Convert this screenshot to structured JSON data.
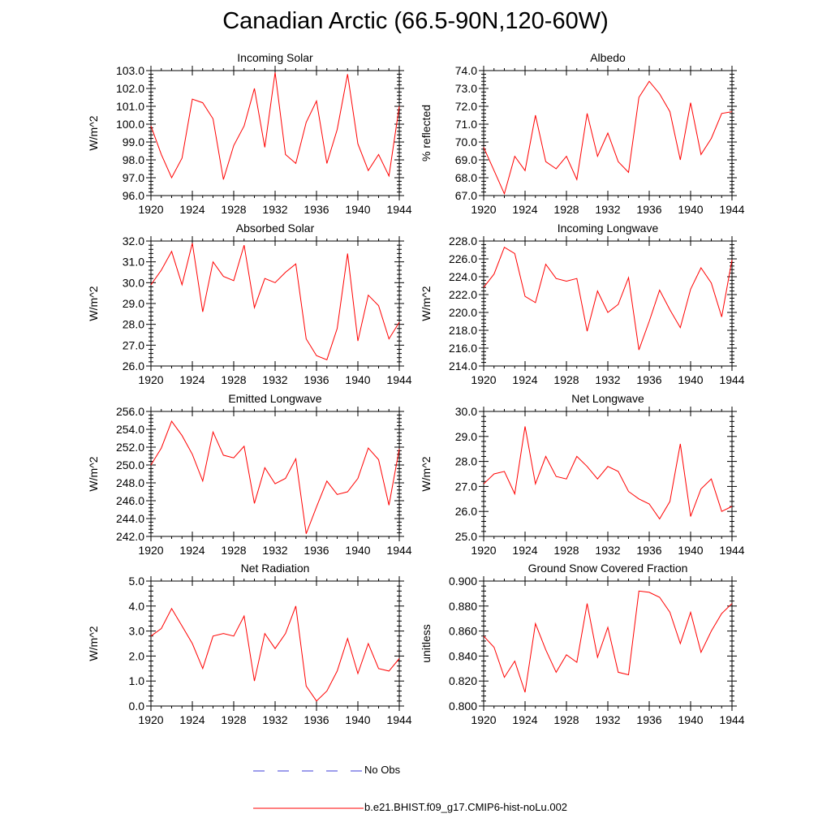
{
  "figure": {
    "title": "Canadian Arctic (66.5-90N,120-60W)"
  },
  "legend": {
    "obs_label": "No Obs",
    "model_label": "b.e21.BHIST.f09_g17.CMIP6-hist-noLu.002",
    "obs_color": "#3b3bd9",
    "model_color": "#ff0000"
  },
  "chart_data": [
    {
      "type": "line",
      "title": "Incoming Solar",
      "ylabel": "W/m^2",
      "xlim": [
        1920,
        1944
      ],
      "ylim": [
        96,
        103
      ],
      "yticks": [
        "96.0",
        "97.0",
        "98.0",
        "99.0",
        "100.0",
        "101.0",
        "102.0",
        "103.0"
      ],
      "xticks": [
        "1920",
        "1924",
        "1928",
        "1932",
        "1936",
        "1940",
        "1944"
      ],
      "x": [
        1920,
        1921,
        1922,
        1923,
        1924,
        1925,
        1926,
        1927,
        1928,
        1929,
        1930,
        1931,
        1932,
        1933,
        1934,
        1935,
        1936,
        1937,
        1938,
        1939,
        1940,
        1941,
        1942,
        1943,
        1944
      ],
      "series": [
        {
          "name": "b.e21.BHIST.f09_g17.CMIP6-hist-noLu.002",
          "values": [
            99.9,
            98.3,
            97.0,
            98.1,
            101.4,
            101.2,
            100.3,
            96.9,
            98.8,
            99.9,
            102.0,
            98.7,
            102.9,
            98.3,
            97.8,
            100.1,
            101.3,
            97.8,
            99.7,
            102.8,
            98.9,
            97.4,
            98.3,
            97.1,
            101.0
          ]
        }
      ]
    },
    {
      "type": "line",
      "title": "Albedo",
      "ylabel": "% reflected",
      "xlim": [
        1920,
        1944
      ],
      "ylim": [
        67,
        74
      ],
      "yticks": [
        "67.0",
        "68.0",
        "69.0",
        "70.0",
        "71.0",
        "72.0",
        "73.0",
        "74.0"
      ],
      "xticks": [
        "1920",
        "1924",
        "1928",
        "1932",
        "1936",
        "1940",
        "1944"
      ],
      "x": [
        1920,
        1921,
        1922,
        1923,
        1924,
        1925,
        1926,
        1927,
        1928,
        1929,
        1930,
        1931,
        1932,
        1933,
        1934,
        1935,
        1936,
        1937,
        1938,
        1939,
        1940,
        1941,
        1942,
        1943,
        1944
      ],
      "series": [
        {
          "name": "b.e21.BHIST.f09_g17.CMIP6-hist-noLu.002",
          "values": [
            69.7,
            68.4,
            67.1,
            69.2,
            68.4,
            71.5,
            68.9,
            68.5,
            69.2,
            67.9,
            71.6,
            69.2,
            70.5,
            68.9,
            68.3,
            72.5,
            73.4,
            72.7,
            71.7,
            69.0,
            72.2,
            69.3,
            70.2,
            71.6,
            71.7
          ]
        }
      ]
    },
    {
      "type": "line",
      "title": "Absorbed Solar",
      "ylabel": "W/m^2",
      "xlim": [
        1920,
        1944
      ],
      "ylim": [
        26,
        32
      ],
      "yticks": [
        "26.0",
        "27.0",
        "28.0",
        "29.0",
        "30.0",
        "31.0",
        "32.0"
      ],
      "xticks": [
        "1920",
        "1924",
        "1928",
        "1932",
        "1936",
        "1940",
        "1944"
      ],
      "x": [
        1920,
        1921,
        1922,
        1923,
        1924,
        1925,
        1926,
        1927,
        1928,
        1929,
        1930,
        1931,
        1932,
        1933,
        1934,
        1935,
        1936,
        1937,
        1938,
        1939,
        1940,
        1941,
        1942,
        1943,
        1944
      ],
      "series": [
        {
          "name": "b.e21.BHIST.f09_g17.CMIP6-hist-noLu.002",
          "values": [
            29.9,
            30.6,
            31.5,
            29.9,
            31.9,
            28.6,
            31.0,
            30.3,
            30.1,
            31.8,
            28.8,
            30.2,
            30.0,
            30.5,
            30.9,
            27.3,
            26.5,
            26.3,
            27.8,
            31.4,
            27.2,
            29.4,
            28.9,
            27.3,
            28.1
          ]
        }
      ]
    },
    {
      "type": "line",
      "title": "Incoming Longwave",
      "ylabel": "W/m^2",
      "xlim": [
        1920,
        1944
      ],
      "ylim": [
        214,
        228
      ],
      "yticks": [
        "214.0",
        "216.0",
        "218.0",
        "220.0",
        "222.0",
        "224.0",
        "226.0",
        "228.0"
      ],
      "xticks": [
        "1920",
        "1924",
        "1928",
        "1932",
        "1936",
        "1940",
        "1944"
      ],
      "x": [
        1920,
        1921,
        1922,
        1923,
        1924,
        1925,
        1926,
        1927,
        1928,
        1929,
        1930,
        1931,
        1932,
        1933,
        1934,
        1935,
        1936,
        1937,
        1938,
        1939,
        1940,
        1941,
        1942,
        1943,
        1944
      ],
      "series": [
        {
          "name": "b.e21.BHIST.f09_g17.CMIP6-hist-noLu.002",
          "values": [
            222.8,
            224.3,
            227.3,
            226.6,
            221.8,
            221.1,
            225.4,
            223.8,
            223.5,
            223.8,
            217.9,
            222.4,
            220.0,
            220.9,
            223.9,
            215.8,
            219.0,
            222.5,
            220.3,
            218.3,
            222.6,
            225.0,
            223.3,
            219.5,
            225.9
          ]
        }
      ]
    },
    {
      "type": "line",
      "title": "Emitted Longwave",
      "ylabel": "W/m^2",
      "xlim": [
        1920,
        1944
      ],
      "ylim": [
        242,
        256
      ],
      "yticks": [
        "242.0",
        "244.0",
        "246.0",
        "248.0",
        "250.0",
        "252.0",
        "254.0",
        "256.0"
      ],
      "xticks": [
        "1920",
        "1924",
        "1928",
        "1932",
        "1936",
        "1940",
        "1944"
      ],
      "x": [
        1920,
        1921,
        1922,
        1923,
        1924,
        1925,
        1926,
        1927,
        1928,
        1929,
        1930,
        1931,
        1932,
        1933,
        1934,
        1935,
        1936,
        1937,
        1938,
        1939,
        1940,
        1941,
        1942,
        1943,
        1944
      ],
      "series": [
        {
          "name": "b.e21.BHIST.f09_g17.CMIP6-hist-noLu.002",
          "values": [
            250.0,
            251.9,
            254.9,
            253.3,
            251.2,
            248.2,
            253.7,
            251.1,
            250.8,
            252.1,
            245.7,
            249.7,
            247.9,
            248.5,
            250.7,
            242.3,
            245.3,
            248.2,
            246.7,
            247.0,
            248.5,
            251.9,
            250.6,
            245.5,
            251.8
          ]
        }
      ]
    },
    {
      "type": "line",
      "title": "Net Longwave",
      "ylabel": "W/m^2",
      "xlim": [
        1920,
        1944
      ],
      "ylim": [
        25,
        30
      ],
      "yticks": [
        "25.0",
        "26.0",
        "27.0",
        "28.0",
        "29.0",
        "30.0"
      ],
      "xticks": [
        "1920",
        "1924",
        "1928",
        "1932",
        "1936",
        "1940",
        "1944"
      ],
      "x": [
        1920,
        1921,
        1922,
        1923,
        1924,
        1925,
        1926,
        1927,
        1928,
        1929,
        1930,
        1931,
        1932,
        1933,
        1934,
        1935,
        1936,
        1937,
        1938,
        1939,
        1940,
        1941,
        1942,
        1943,
        1944
      ],
      "series": [
        {
          "name": "b.e21.BHIST.f09_g17.CMIP6-hist-noLu.002",
          "values": [
            27.1,
            27.5,
            27.6,
            26.7,
            29.4,
            27.1,
            28.2,
            27.4,
            27.3,
            28.2,
            27.8,
            27.3,
            27.8,
            27.6,
            26.8,
            26.5,
            26.3,
            25.7,
            26.4,
            28.7,
            25.8,
            26.9,
            27.3,
            26.0,
            26.2
          ]
        }
      ]
    },
    {
      "type": "line",
      "title": "Net Radiation",
      "ylabel": "W/m^2",
      "xlim": [
        1920,
        1944
      ],
      "ylim": [
        0,
        5
      ],
      "yticks": [
        "0.0",
        "1.0",
        "2.0",
        "3.0",
        "4.0",
        "5.0"
      ],
      "xticks": [
        "1920",
        "1924",
        "1928",
        "1932",
        "1936",
        "1940",
        "1944"
      ],
      "x": [
        1920,
        1921,
        1922,
        1923,
        1924,
        1925,
        1926,
        1927,
        1928,
        1929,
        1930,
        1931,
        1932,
        1933,
        1934,
        1935,
        1936,
        1937,
        1938,
        1939,
        1940,
        1941,
        1942,
        1943,
        1944
      ],
      "series": [
        {
          "name": "b.e21.BHIST.f09_g17.CMIP6-hist-noLu.002",
          "values": [
            2.8,
            3.1,
            3.9,
            3.2,
            2.5,
            1.5,
            2.8,
            2.9,
            2.8,
            3.6,
            1.0,
            2.9,
            2.3,
            2.9,
            4.0,
            0.8,
            0.2,
            0.6,
            1.4,
            2.7,
            1.3,
            2.5,
            1.5,
            1.4,
            1.9
          ]
        }
      ]
    },
    {
      "type": "line",
      "title": "Ground Snow Covered Fraction",
      "ylabel": "unitless",
      "xlim": [
        1920,
        1944
      ],
      "ylim": [
        0.8,
        0.9
      ],
      "yticks": [
        "0.800",
        "0.820",
        "0.840",
        "0.860",
        "0.880",
        "0.900"
      ],
      "xticks": [
        "1920",
        "1924",
        "1928",
        "1932",
        "1936",
        "1940",
        "1944"
      ],
      "x": [
        1920,
        1921,
        1922,
        1923,
        1924,
        1925,
        1926,
        1927,
        1928,
        1929,
        1930,
        1931,
        1932,
        1933,
        1934,
        1935,
        1936,
        1937,
        1938,
        1939,
        1940,
        1941,
        1942,
        1943,
        1944
      ],
      "series": [
        {
          "name": "b.e21.BHIST.f09_g17.CMIP6-hist-noLu.002",
          "values": [
            0.856,
            0.847,
            0.823,
            0.836,
            0.811,
            0.866,
            0.845,
            0.827,
            0.841,
            0.835,
            0.882,
            0.839,
            0.863,
            0.827,
            0.825,
            0.892,
            0.891,
            0.887,
            0.875,
            0.85,
            0.875,
            0.843,
            0.86,
            0.874,
            0.882
          ]
        }
      ]
    }
  ]
}
